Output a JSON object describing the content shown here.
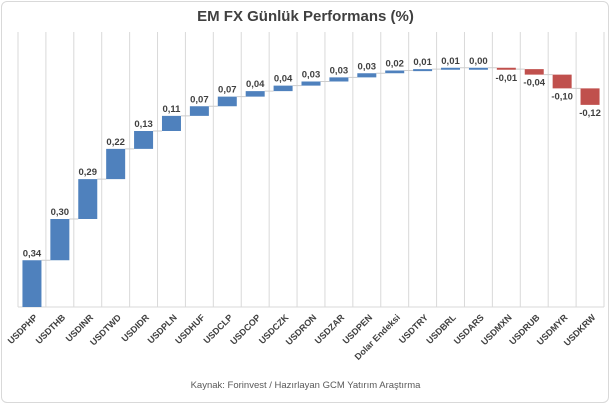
{
  "chart_data": {
    "type": "bar",
    "subtype": "waterfall",
    "title": "EM FX Günlük Performans (%)",
    "categories": [
      "USDPHP",
      "USDTHB",
      "USDINR",
      "USDTWD",
      "USDIDR",
      "USDPLN",
      "USDHUF",
      "USDCLP",
      "USDCOP",
      "USDCZK",
      "USDRON",
      "USDZAR",
      "USDPEN",
      "Dolar Endeksi",
      "USDTRY",
      "USDBRL",
      "USDARS",
      "USDMXN",
      "USDRUB",
      "USDMYR",
      "USDKRW"
    ],
    "values": [
      0.34,
      0.3,
      0.29,
      0.22,
      0.13,
      0.11,
      0.07,
      0.07,
      0.04,
      0.04,
      0.03,
      0.03,
      0.03,
      0.02,
      0.01,
      0.01,
      0.0,
      -0.01,
      -0.04,
      -0.1,
      -0.12
    ],
    "value_labels": [
      "0,34",
      "0,30",
      "0,29",
      "0,22",
      "0,13",
      "0,11",
      "0,07",
      "0,07",
      "0,04",
      "0,04",
      "0,03",
      "0,03",
      "0,03",
      "0,02",
      "0,01",
      "0,01",
      "0,00",
      "-0,01",
      "-0,04",
      "-0,10",
      "-0,12"
    ],
    "cumulative": true,
    "xlabel": "",
    "ylabel": "",
    "ylim": [
      0,
      2
    ],
    "grid": "vertical-only",
    "legend": "none",
    "colors": {
      "positive_bar": "#4F81BD",
      "negative_bar": "#C0504D",
      "gridline": "#D9D9D9",
      "axis_line": "#D9D9D9",
      "connector": "#CCCCCC",
      "value_label": "#404040",
      "category_label": "#404040",
      "title": "#404040",
      "source": "#595959",
      "background": "#FFFFFF",
      "border": "#D9D9D9"
    }
  },
  "footer": {
    "source_note": "Kaynak: Forinvest / Hazırlayan GCM Yatırım Araştırma"
  }
}
